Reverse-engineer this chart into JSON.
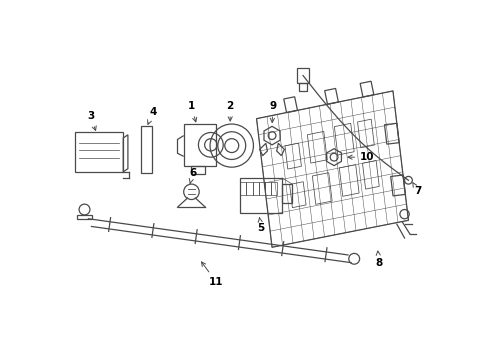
{
  "bg_color": "#ffffff",
  "line_color": "#4a4a4a",
  "text_color": "#000000",
  "fig_width": 4.9,
  "fig_height": 3.6,
  "dpi": 100
}
